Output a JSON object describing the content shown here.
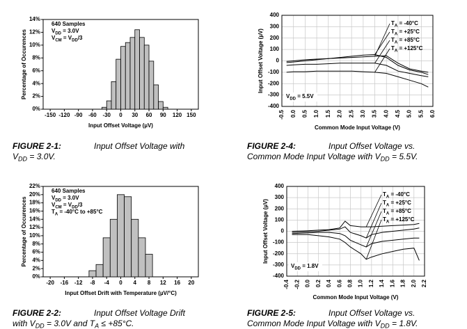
{
  "chart_data": [
    {
      "type": "histogram",
      "caption": {
        "label": "FIGURE 2-1:",
        "lines": [
          [
            "Input Offset Voltage with"
          ],
          [
            "V",
            "DD",
            " = 3.0V."
          ]
        ]
      },
      "annotations": [
        [
          "640 Samples"
        ],
        [
          "V",
          "DD",
          " = 3.0V"
        ],
        [
          "V",
          "CM",
          " = V",
          "DD",
          "/3"
        ]
      ],
      "xlabel": "Input Offset Voltage (µV)",
      "ylabel": "Percentage of Occurences",
      "bins": [
        -40,
        -30,
        -20,
        -10,
        0,
        10,
        20,
        30,
        40,
        50,
        60,
        70,
        80,
        90,
        100
      ],
      "values": [
        0.3,
        1.3,
        4.3,
        7.8,
        9.8,
        10.4,
        11.2,
        12.4,
        11.2,
        10,
        7.5,
        3.8,
        1.2,
        0.3
      ],
      "color": "#c0c0c0",
      "xlim": [
        -165,
        165
      ],
      "xticks": [
        -150,
        -120,
        -90,
        -60,
        -30,
        0,
        30,
        60,
        90,
        120,
        150
      ],
      "ylim": [
        0,
        14
      ],
      "yticks": [
        {
          "value": 0,
          "label": "0%"
        },
        {
          "value": 2,
          "label": "2%"
        },
        {
          "value": 4,
          "label": "4%"
        },
        {
          "value": 6,
          "label": "6%"
        },
        {
          "value": 8,
          "label": "8%"
        },
        {
          "value": 10,
          "label": "10%"
        },
        {
          "value": 12,
          "label": "12%"
        },
        {
          "value": 14,
          "label": "14%"
        }
      ],
      "grid": false
    },
    {
      "type": "line",
      "caption": {
        "label": "FIGURE 2-4:",
        "lines": [
          [
            "Input Offset Voltage vs."
          ],
          [
            "Common Mode Input Voltage with V",
            "DD",
            " = 5.5V."
          ]
        ]
      },
      "annotations": [
        [
          "V",
          "DD",
          " = 5.5V"
        ]
      ],
      "xlabel": "Common Mode Input Voltage (V)",
      "ylabel": "Input Offset Voltage (µV)",
      "x": [
        -0.3,
        0,
        0.5,
        1,
        1.5,
        2,
        2.5,
        3,
        3.5,
        4,
        4.5,
        5,
        5.5,
        5.8
      ],
      "series": [
        {
          "name": [
            "T",
            "A",
            " = -40°C"
          ],
          "color": "#000000",
          "values": [
            -5,
            0,
            10,
            15,
            20,
            25,
            30,
            35,
            40,
            45,
            -20,
            -70,
            -90,
            -100
          ]
        },
        {
          "name": [
            "T",
            "A",
            " = +25°C"
          ],
          "color": "#000000",
          "values": [
            -15,
            -10,
            0,
            10,
            20,
            30,
            40,
            50,
            55,
            30,
            -40,
            -80,
            -100,
            -120
          ]
        },
        {
          "name": [
            "T",
            "A",
            " = +85°C"
          ],
          "color": "#000000",
          "values": [
            -40,
            -35,
            -30,
            -30,
            -25,
            -20,
            -20,
            -20,
            -20,
            -40,
            -90,
            -110,
            -130,
            -140
          ]
        },
        {
          "name": [
            "T",
            "A",
            " = +125°C"
          ],
          "color": "#000000",
          "values": [
            -100,
            -95,
            -95,
            -90,
            -90,
            -90,
            -90,
            -95,
            -100,
            -110,
            -140,
            -170,
            -200,
            -230
          ]
        }
      ],
      "xlim": [
        -0.5,
        6.0
      ],
      "xticks": [
        -0.5,
        {
          "value": 0,
          "label": "0.0"
        },
        0.5,
        {
          "value": 1,
          "label": "1.0"
        },
        1.5,
        {
          "value": 2,
          "label": "2.0"
        },
        2.5,
        {
          "value": 3,
          "label": "3.0"
        },
        3.5,
        {
          "value": 4,
          "label": "4.0"
        },
        4.5,
        {
          "value": 5,
          "label": "5.0"
        },
        5.5,
        {
          "value": 6,
          "label": "6.0"
        }
      ],
      "ylim": [
        -400,
        400
      ],
      "yticks": [
        -400,
        -300,
        -200,
        -100,
        0,
        100,
        200,
        300,
        400
      ],
      "grid": true
    },
    {
      "type": "histogram",
      "caption": {
        "label": "FIGURE 2-2:",
        "lines": [
          [
            "Input Offset Voltage Drift"
          ],
          [
            "with V",
            "DD",
            " = 3.0V and T",
            "A",
            " ≤ +85°C."
          ]
        ]
      },
      "annotations": [
        [
          "640 Samples"
        ],
        [
          "V",
          "DD",
          " = 3.0V"
        ],
        [
          "V",
          "CM",
          " = V",
          "DD",
          "/3"
        ],
        [
          "T",
          "A",
          " = -40°C to +85°C"
        ]
      ],
      "xlabel": "Input Offset Drift with Temperature (µV/°C)",
      "ylabel": "Percentage of Occurences",
      "bins": [
        -9,
        -7,
        -5,
        -3,
        -1,
        1,
        3,
        5,
        7,
        9
      ],
      "values": [
        1.5,
        3,
        9.5,
        14,
        20,
        19.5,
        14,
        9.5,
        5.5
      ],
      "color": "#c0c0c0",
      "xlim": [
        -22,
        22
      ],
      "xticks": [
        -20,
        -16,
        -12,
        -8,
        -4,
        0,
        4,
        8,
        12,
        16,
        20
      ],
      "ylim": [
        0,
        22
      ],
      "yticks": [
        {
          "value": 0,
          "label": "0%"
        },
        {
          "value": 2,
          "label": "2%"
        },
        {
          "value": 4,
          "label": "4%"
        },
        {
          "value": 6,
          "label": "6%"
        },
        {
          "value": 8,
          "label": "8%"
        },
        {
          "value": 10,
          "label": "10%"
        },
        {
          "value": 12,
          "label": "12%"
        },
        {
          "value": 14,
          "label": "14%"
        },
        {
          "value": 16,
          "label": "16%"
        },
        {
          "value": 18,
          "label": "18%"
        },
        {
          "value": 20,
          "label": "20%"
        },
        {
          "value": 22,
          "label": "22%"
        }
      ],
      "grid": false
    },
    {
      "type": "line",
      "caption": {
        "label": "FIGURE 2-5:",
        "lines": [
          [
            "Input Offset Voltage vs."
          ],
          [
            "Common Mode Input Voltage with V",
            "DD",
            " = 1.8V."
          ]
        ]
      },
      "annotations": [
        [
          "V",
          "DD",
          " = 1.8V"
        ]
      ],
      "xlabel": "Common Mode Input Voltage (V)",
      "ylabel": "Input Offset Voltage (µV)",
      "x": [
        -0.3,
        0,
        0.2,
        0.4,
        0.6,
        0.7,
        0.8,
        1.0,
        1.1,
        1.2,
        1.4,
        1.6,
        1.8,
        2.0,
        2.1
      ],
      "series": [
        {
          "name": [
            "T",
            "A",
            " = -40°C"
          ],
          "color": "#000000",
          "values": [
            0,
            5,
            10,
            15,
            30,
            90,
            50,
            40,
            40,
            40,
            45,
            50,
            55,
            60,
            70
          ]
        },
        {
          "name": [
            "T",
            "A",
            " = +25°C"
          ],
          "color": "#000000",
          "values": [
            -10,
            -5,
            0,
            10,
            20,
            40,
            -10,
            -40,
            -60,
            -30,
            -10,
            0,
            10,
            20,
            30
          ]
        },
        {
          "name": [
            "T",
            "A",
            " = +85°C"
          ],
          "color": "#000000",
          "values": [
            -20,
            -15,
            -10,
            -10,
            -20,
            -40,
            -80,
            -120,
            -140,
            -110,
            -90,
            -80,
            -70,
            -60,
            -60
          ]
        },
        {
          "name": [
            "T",
            "A",
            " = +125°C"
          ],
          "color": "#000000",
          "values": [
            -30,
            -30,
            -40,
            -50,
            -70,
            -100,
            -140,
            -200,
            -250,
            -230,
            -200,
            -180,
            -160,
            -150,
            -260
          ]
        }
      ],
      "xlim": [
        -0.4,
        2.2
      ],
      "xticks": [
        -0.4,
        -0.2,
        {
          "value": 0,
          "label": "0.0"
        },
        0.2,
        0.4,
        0.6,
        0.8,
        {
          "value": 1,
          "label": "1.0"
        },
        1.2,
        1.4,
        1.6,
        1.8,
        {
          "value": 2,
          "label": "2.0"
        },
        2.2
      ],
      "ylim": [
        -400,
        400
      ],
      "yticks": [
        -400,
        -300,
        -200,
        -100,
        0,
        100,
        200,
        300,
        400
      ],
      "grid": true
    }
  ]
}
